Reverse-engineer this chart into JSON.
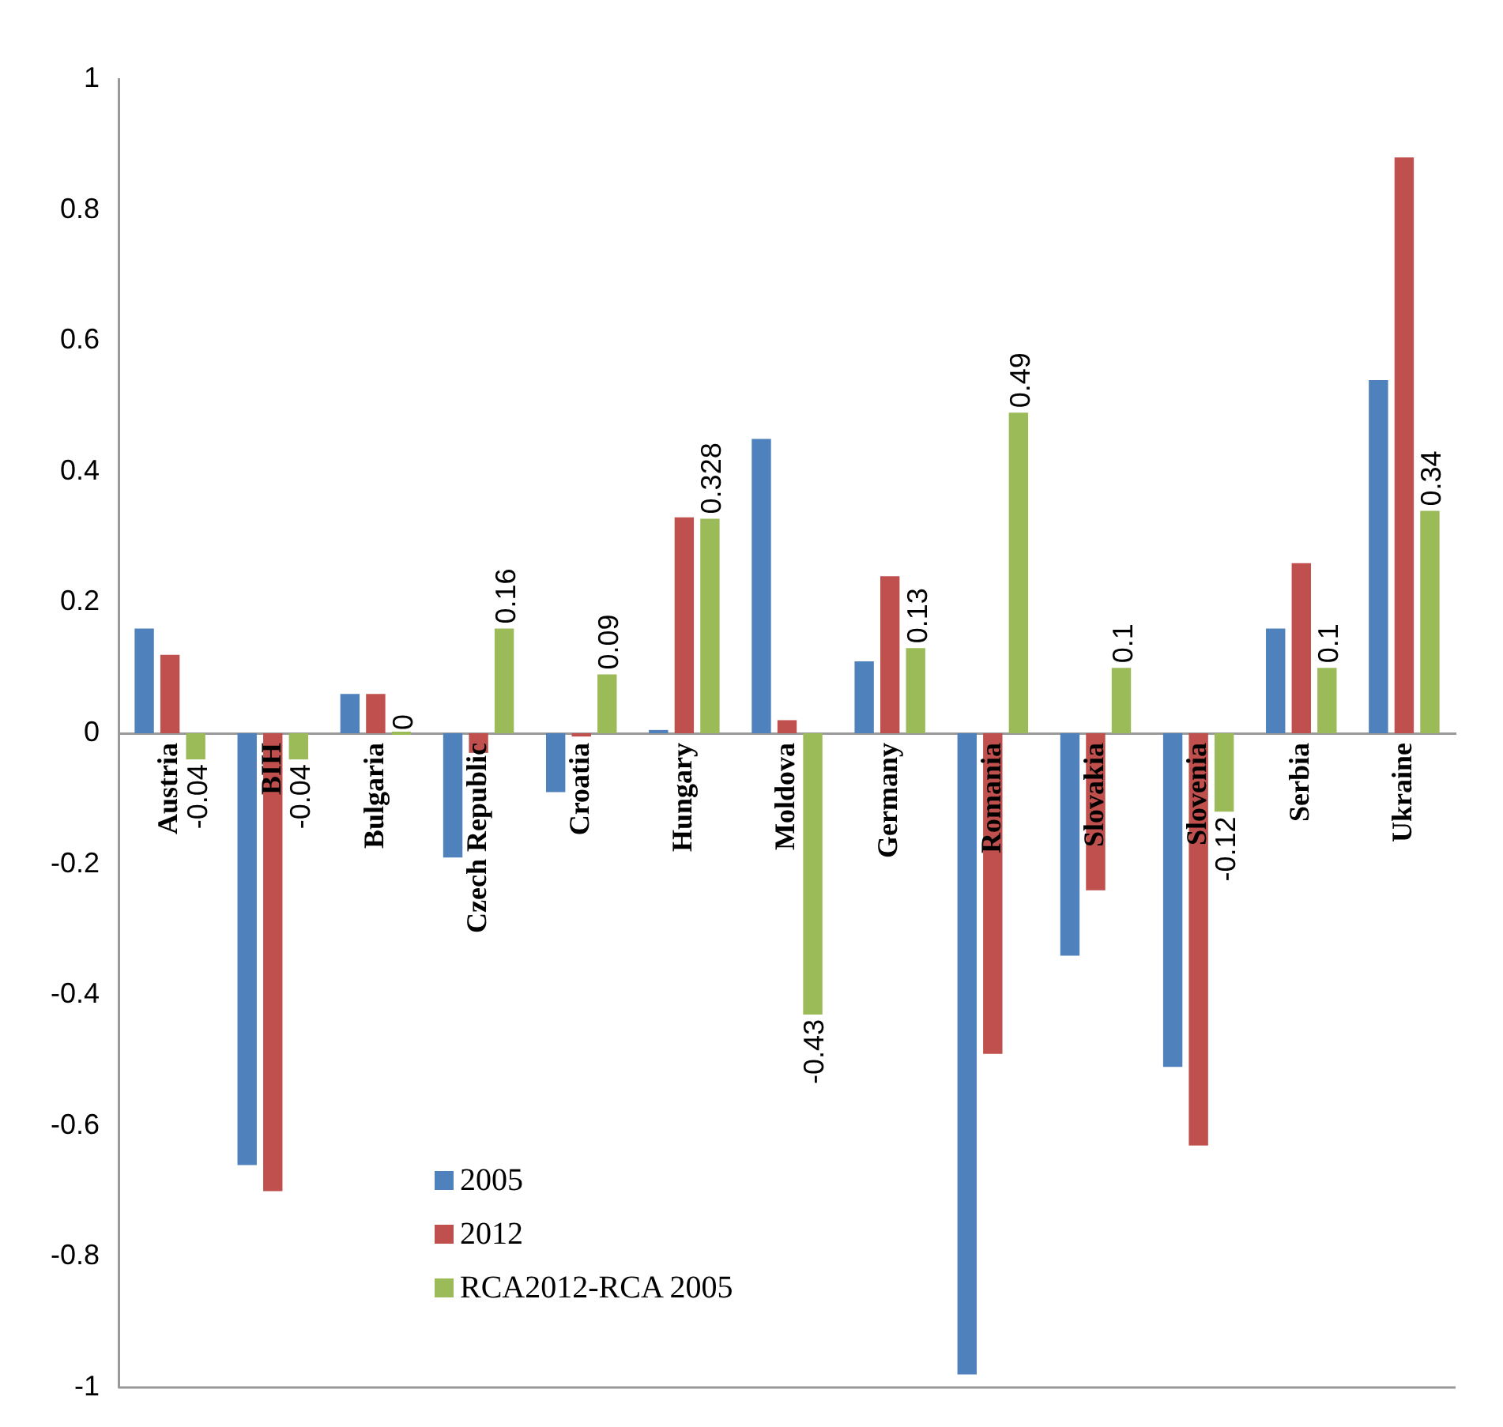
{
  "chart_data": {
    "type": "bar",
    "categories": [
      "Austria",
      "BIH",
      "Bulgaria",
      "Czech Republic",
      "Croatia",
      "Hungary",
      "Moldova",
      "Germany",
      "Romania",
      "Slovakia",
      "Slovenia",
      "Serbia",
      "Ukraine"
    ],
    "series": [
      {
        "name": "2005",
        "color": "#4f81bd",
        "values": [
          0.16,
          -0.66,
          0.06,
          -0.19,
          -0.09,
          0.005,
          0.45,
          0.11,
          -0.98,
          -0.34,
          -0.51,
          0.16,
          0.54
        ]
      },
      {
        "name": "2012",
        "color": "#c0504d",
        "values": [
          0.12,
          -0.7,
          0.06,
          -0.03,
          -0.005,
          0.33,
          0.02,
          0.24,
          -0.49,
          -0.24,
          -0.63,
          0.26,
          0.88
        ]
      },
      {
        "name": "RCA2012-RCA 2005",
        "color": "#9bbb59",
        "values": [
          -0.04,
          -0.04,
          0,
          0.16,
          0.09,
          0.328,
          -0.43,
          0.13,
          0.49,
          0.1,
          -0.12,
          0.1,
          0.34
        ],
        "value_labels": [
          "-0.04",
          "-0.04",
          "0",
          "0.16",
          "0.09",
          "0.328",
          "-0.43",
          "0.13",
          "0.49",
          "0.1",
          "-0.12",
          "0.1",
          "0.34"
        ]
      }
    ],
    "ylim": [
      -1,
      1
    ],
    "yticks": [
      -1,
      -0.8,
      -0.6,
      -0.4,
      -0.2,
      0,
      0.2,
      0.4,
      0.6,
      0.8,
      1
    ],
    "grid": false,
    "legend": "bottom left"
  }
}
